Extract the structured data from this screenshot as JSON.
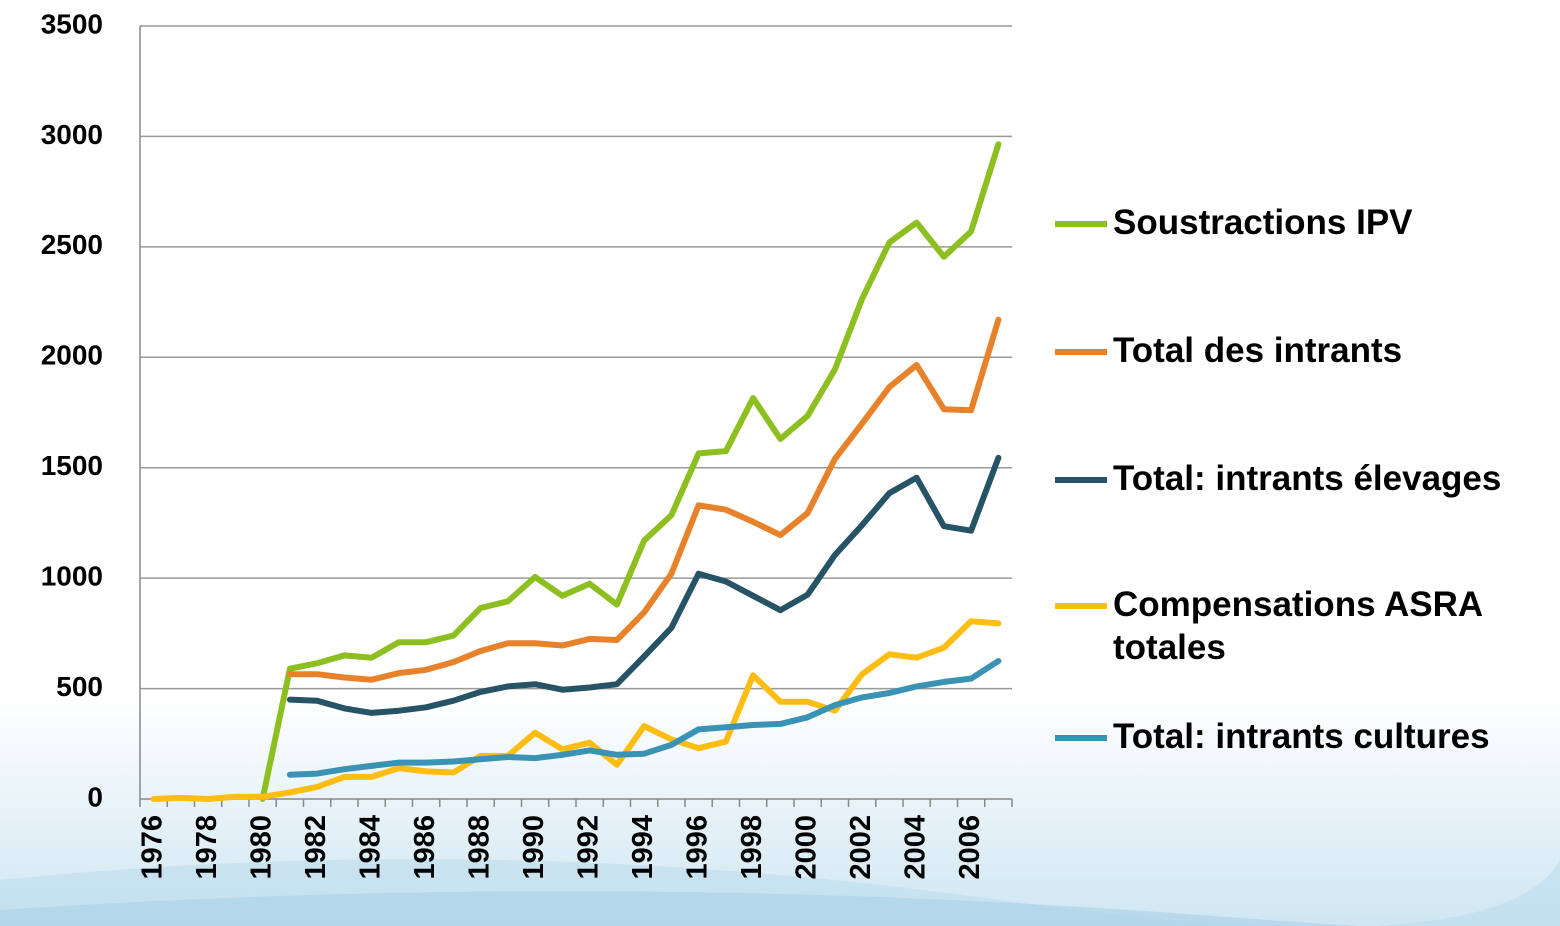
{
  "chart_data": {
    "type": "line",
    "categories": [
      "1976",
      null,
      "1978",
      null,
      "1980",
      null,
      "1982",
      null,
      "1984",
      null,
      "1986",
      null,
      "1988",
      null,
      "1990",
      null,
      "1992",
      null,
      "1994",
      null,
      "1996",
      null,
      "1998",
      null,
      "2000",
      null,
      "2002",
      null,
      "2004",
      null,
      "2006",
      null
    ],
    "series": [
      {
        "name": "Soustractions IPV",
        "color": "#8cbf1f",
        "values": [
          null,
          null,
          null,
          null,
          0,
          590,
          615,
          650,
          640,
          710,
          710,
          740,
          865,
          895,
          1005,
          920,
          975,
          880,
          1170,
          1285,
          1565,
          1575,
          1815,
          1630,
          1735,
          1945,
          2265,
          2520,
          2610,
          2455,
          2570,
          2965
        ]
      },
      {
        "name": "Total des intrants",
        "color": "#e8822a",
        "values": [
          null,
          null,
          null,
          null,
          null,
          565,
          565,
          550,
          540,
          570,
          585,
          620,
          670,
          705,
          705,
          695,
          725,
          720,
          845,
          1020,
          1330,
          1310,
          1255,
          1195,
          1295,
          1540,
          1700,
          1865,
          1965,
          1765,
          1760,
          2170
        ]
      },
      {
        "name": "Total: intrants élevages",
        "color": "#275366",
        "values": [
          null,
          null,
          null,
          null,
          null,
          450,
          445,
          410,
          390,
          400,
          415,
          445,
          485,
          510,
          520,
          495,
          505,
          520,
          645,
          775,
          1020,
          985,
          920,
          855,
          925,
          1105,
          1240,
          1385,
          1455,
          1235,
          1215,
          1545
        ]
      },
      {
        "name": "Compensations ASRA totales",
        "color": "#fdbd12",
        "values": [
          0,
          5,
          0,
          10,
          10,
          30,
          55,
          100,
          100,
          140,
          125,
          120,
          195,
          195,
          300,
          225,
          255,
          155,
          330,
          270,
          230,
          260,
          560,
          440,
          440,
          400,
          565,
          655,
          640,
          685,
          805,
          795
        ]
      },
      {
        "name": "Total: intrants cultures",
        "color": "#3a92b4",
        "values": [
          null,
          null,
          null,
          null,
          null,
          110,
          115,
          135,
          150,
          165,
          165,
          170,
          180,
          190,
          185,
          200,
          220,
          200,
          205,
          245,
          315,
          325,
          335,
          340,
          370,
          425,
          460,
          480,
          510,
          530,
          545,
          625
        ]
      }
    ],
    "ylim": [
      0,
      3500
    ],
    "yticks": [
      0,
      500,
      1000,
      1500,
      2000,
      2500,
      3000,
      3500
    ],
    "grid": true,
    "legend": "right"
  }
}
